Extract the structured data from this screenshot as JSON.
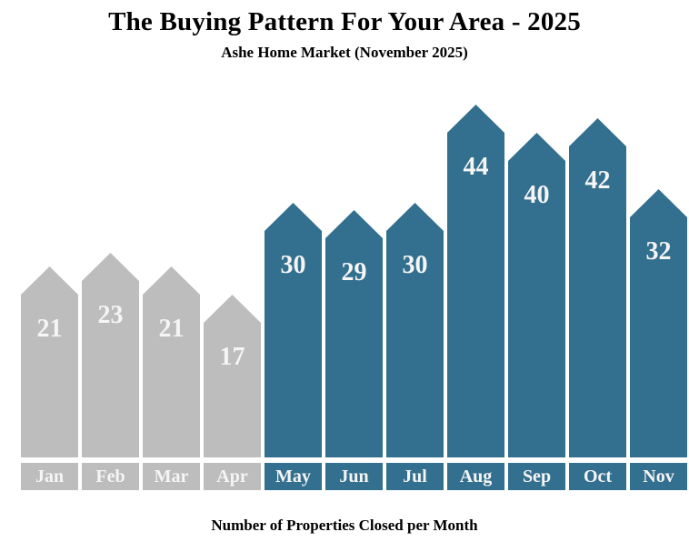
{
  "title": "The Buying Pattern For Your Area - 2025",
  "subtitle": "Ashe Home Market (November 2025)",
  "footer": "Number of Properties Closed per Month",
  "colors": {
    "past_months_bar": "#bdbdbd",
    "recent_months_bar": "#336f8e",
    "bar_value_text": "#f5f5f5",
    "month_label_text": "#f5f5f5",
    "heading_text": "#000000",
    "background": "#ffffff"
  },
  "chart_data": {
    "type": "bar",
    "title": "The Buying Pattern For Your Area - 2025",
    "subtitle": "Ashe Home Market (November 2025)",
    "xlabel": "Number of Properties Closed per Month",
    "ylabel": "",
    "categories": [
      "Jan",
      "Feb",
      "Mar",
      "Apr",
      "May",
      "Jun",
      "Jul",
      "Aug",
      "Sep",
      "Oct",
      "Nov"
    ],
    "values": [
      21,
      23,
      21,
      17,
      30,
      29,
      30,
      44,
      40,
      42,
      32
    ],
    "bar_groups": [
      "past",
      "past",
      "past",
      "past",
      "recent",
      "recent",
      "recent",
      "recent",
      "recent",
      "recent",
      "recent"
    ],
    "bar_shape": "pentagon-arrow",
    "value_labels_shown": true,
    "ylim": [
      0,
      50
    ],
    "grid": false,
    "legend": "none"
  }
}
